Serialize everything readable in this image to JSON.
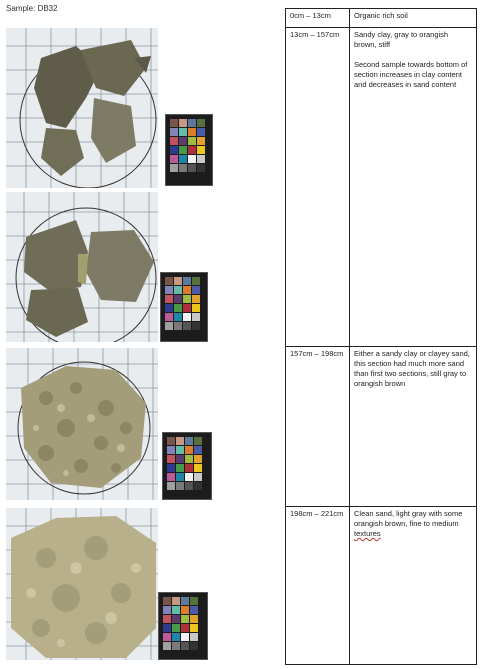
{
  "sample_label": "Sample: DB32",
  "photos": [
    {
      "name": "photo-section-1",
      "alt": "Soil sample photo 1"
    },
    {
      "name": "photo-section-2",
      "alt": "Soil sample photo 2"
    },
    {
      "name": "photo-section-3",
      "alt": "Soil sample photo 3"
    },
    {
      "name": "photo-section-4",
      "alt": "Soil sample photo 4"
    }
  ],
  "colors": {
    "grid_bg": "#e9ecef",
    "grid_line": "#8a96a3",
    "clay_dark": "#5f5d4a",
    "clay_mid": "#7d7b63",
    "sand_light": "#b7b08a",
    "sand_mid": "#a39d79"
  },
  "log": [
    {
      "depth": "0cm – 13cm",
      "description": "Organic rich soil"
    },
    {
      "depth": "13cm – 157cm",
      "description": "Sandy clay, gray to orangish brown, stiff",
      "note": "Second sample towards bottom of section increases in clay content and decreases in sand content"
    },
    {
      "depth": "157cm – 198cm",
      "description": "Either a sandy clay or clayey sand, this section had much more sand than first two sections, still gray to orangish brown"
    },
    {
      "depth": "198cm – 221cm",
      "description_pre": "Clean sand, light gray with some orangish brown, fine to medium ",
      "description_flag": "textures"
    }
  ]
}
